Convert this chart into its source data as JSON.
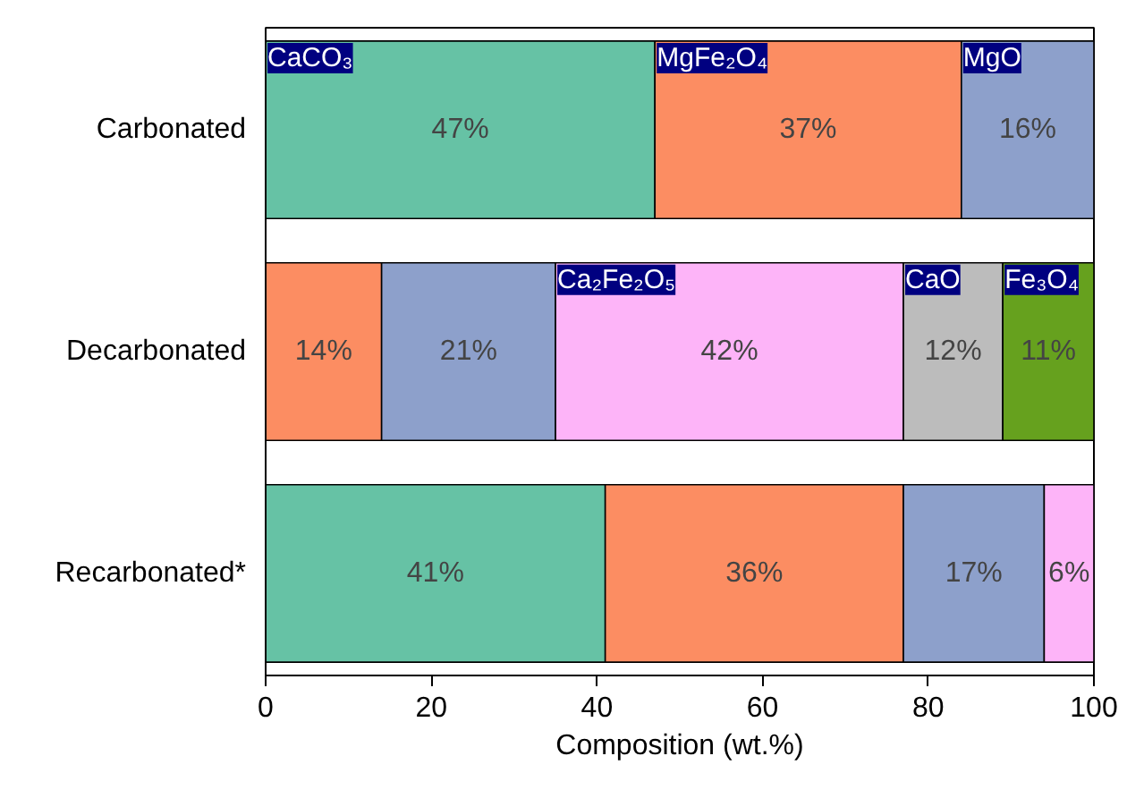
{
  "chart_data": {
    "type": "bar",
    "orientation": "horizontal",
    "stacked": true,
    "categories": [
      "Carbonated",
      "Decarbonated",
      "Recarbonated*"
    ],
    "series": [
      {
        "name": "CaCO₃",
        "color": "#66c2a5",
        "values": [
          47,
          null,
          41
        ],
        "value_labels": [
          "47%",
          null,
          "41%"
        ]
      },
      {
        "name": "MgFe₂O₄",
        "color": "#fc8d62",
        "values": [
          37,
          14,
          36
        ],
        "value_labels": [
          "37%",
          "14%",
          "36%"
        ]
      },
      {
        "name": "MgO",
        "color": "#8da0cb",
        "values": [
          16,
          21,
          17
        ],
        "value_labels": [
          "16%",
          "21%",
          "17%"
        ]
      },
      {
        "name": "Ca₂Fe₂O₅",
        "color": "#fdb4f8",
        "values": [
          null,
          42,
          6
        ],
        "value_labels": [
          null,
          "42%",
          "6%"
        ]
      },
      {
        "name": "CaO",
        "color": "#bcbcbc",
        "values": [
          null,
          12,
          null
        ],
        "value_labels": [
          null,
          "12%",
          null
        ]
      },
      {
        "name": "Fe₃O₄",
        "color": "#66a11e",
        "values": [
          null,
          11,
          null
        ],
        "value_labels": [
          null,
          "11%",
          null
        ]
      }
    ],
    "xlabel": "Composition (wt.%)",
    "xlim": [
      0,
      100
    ],
    "xticks": [
      0,
      20,
      40,
      60,
      80,
      100
    ],
    "grid": false
  }
}
